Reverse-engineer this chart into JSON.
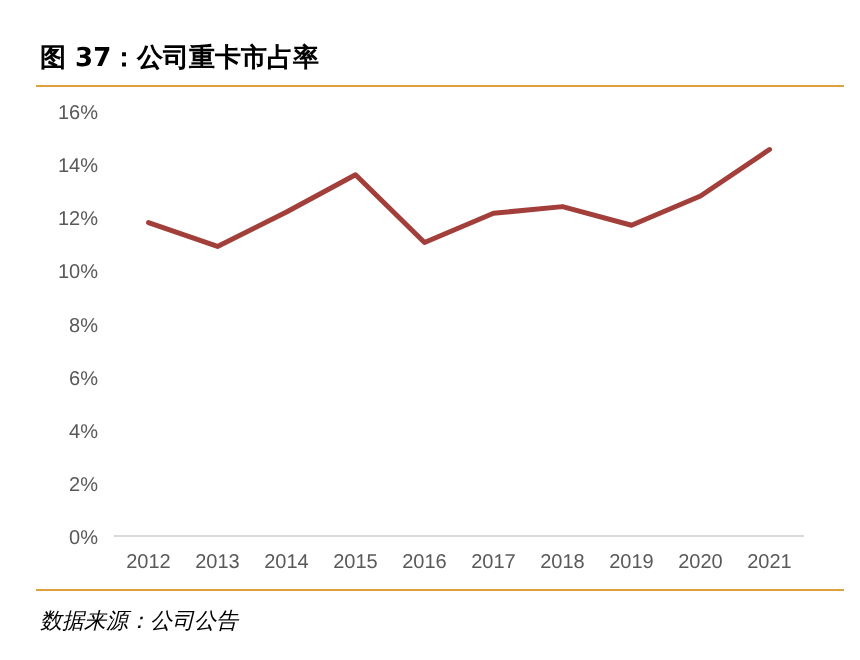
{
  "chart_data": {
    "type": "line",
    "title": "图 37：公司重卡市占率",
    "annotations": [
      "数据来源：公司公告"
    ],
    "categories": [
      "2012",
      "2013",
      "2014",
      "2015",
      "2016",
      "2017",
      "2018",
      "2019",
      "2020",
      "2021"
    ],
    "series": [
      {
        "color": "#a33f3a",
        "values": [
          11.8,
          10.9,
          12.2,
          13.6,
          11.05,
          12.15,
          12.4,
          11.7,
          12.8,
          14.55
        ]
      }
    ],
    "ylim": [
      0,
      16
    ],
    "yticks": [
      {
        "value": 0,
        "label": "0%"
      },
      {
        "value": 2,
        "label": "2%"
      },
      {
        "value": 4,
        "label": "4%"
      },
      {
        "value": 6,
        "label": "6%"
      },
      {
        "value": 8,
        "label": "8%"
      },
      {
        "value": 10,
        "label": "10%"
      },
      {
        "value": 12,
        "label": "12%"
      },
      {
        "value": 14,
        "label": "14%"
      },
      {
        "value": 16,
        "label": "16%"
      }
    ],
    "grid": false,
    "marker": "none",
    "line_style": "solid"
  }
}
